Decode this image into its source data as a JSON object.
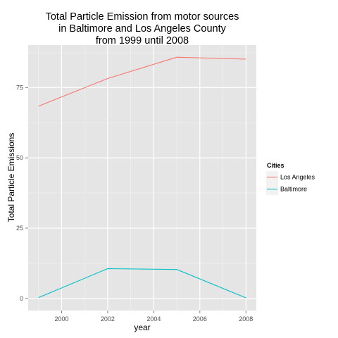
{
  "chart_data": {
    "type": "line",
    "title_lines": [
      "Total Particle Emission from motor sources",
      "in Baltimore and Los Angeles County",
      "from 1999 until 2008"
    ],
    "xlabel": "year",
    "ylabel": "Total Particle Emissions",
    "x": [
      1999,
      2002,
      2005,
      2008
    ],
    "xlim": [
      1998.55,
      2008.45
    ],
    "ylim": [
      -4.3,
      90.1
    ],
    "xticks": [
      2000,
      2002,
      2004,
      2006,
      2008
    ],
    "yticks": [
      0,
      25,
      50,
      75
    ],
    "grid": true,
    "legend": {
      "title": "Cities",
      "position": "right"
    },
    "series": [
      {
        "name": "Los Angeles",
        "color": "#F8766D",
        "values": [
          68.4,
          78.2,
          85.8,
          85.1
        ]
      },
      {
        "name": "Baltimore",
        "color": "#00BFC4",
        "values": [
          0.3,
          10.6,
          10.3,
          0.2
        ]
      }
    ]
  }
}
